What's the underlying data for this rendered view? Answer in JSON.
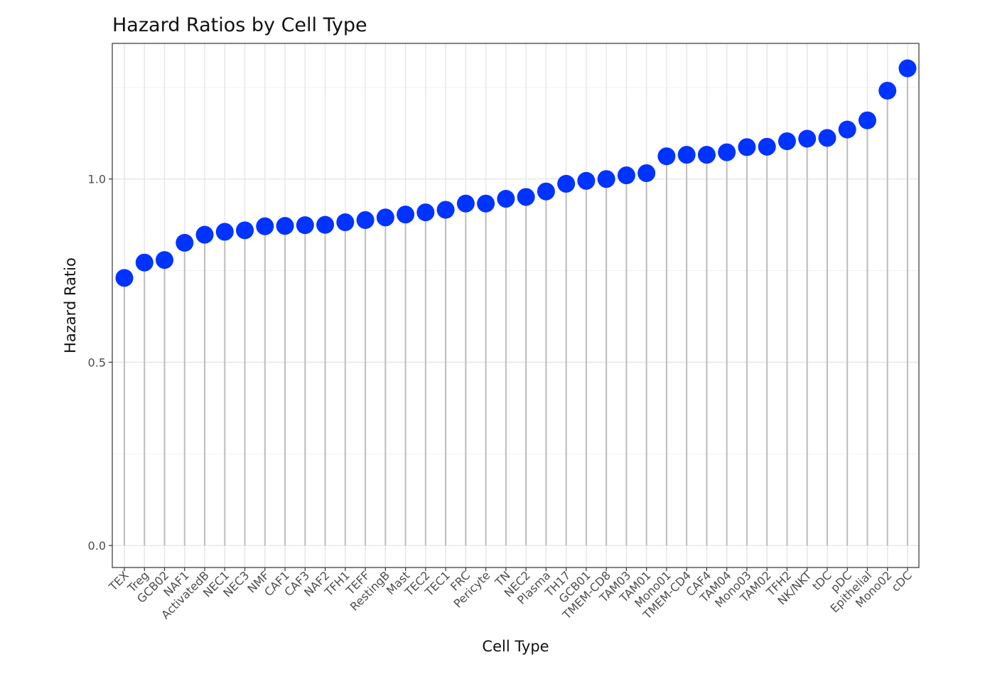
{
  "chart_data": {
    "type": "scatter",
    "style": "lollipop",
    "title": "Hazard Ratios by Cell Type",
    "xlabel": "Cell Type",
    "ylabel": "Hazard Ratio",
    "ylim": [
      -0.06,
      1.37
    ],
    "yticks": [
      0.0,
      0.5,
      1.0
    ],
    "ytick_labels": [
      "0.0",
      "0.5",
      "1.0"
    ],
    "grid": true,
    "point_color": "#0033ff",
    "stem_color": "#bdbdbd",
    "categories": [
      "TEX",
      "Treg",
      "GCB02",
      "NAF1",
      "ActivatedB",
      "NEC1",
      "NEC3",
      "NMF",
      "CAF1",
      "CAF3",
      "NAF2",
      "TFH1",
      "TEFF",
      "RestingB",
      "Mast",
      "TEC2",
      "TEC1",
      "FRC",
      "Pericyte",
      "TN",
      "NEC2",
      "Plasma",
      "TH17",
      "GCB01",
      "TMEM-CD8",
      "TAM03",
      "TAM01",
      "Mono01",
      "TMEM-CD4",
      "CAF4",
      "TAM04",
      "Mono03",
      "TAM02",
      "TFH2",
      "NK/NKT",
      "tDC",
      "pDC",
      "Epithelial",
      "Mono02",
      "cDC"
    ],
    "values": [
      0.73,
      0.772,
      0.779,
      0.826,
      0.848,
      0.856,
      0.86,
      0.871,
      0.872,
      0.874,
      0.875,
      0.882,
      0.888,
      0.895,
      0.903,
      0.909,
      0.916,
      0.933,
      0.933,
      0.946,
      0.951,
      0.966,
      0.987,
      0.995,
      1.0,
      1.01,
      1.016,
      1.062,
      1.066,
      1.066,
      1.073,
      1.087,
      1.088,
      1.103,
      1.11,
      1.112,
      1.135,
      1.16,
      1.241,
      1.302
    ]
  }
}
